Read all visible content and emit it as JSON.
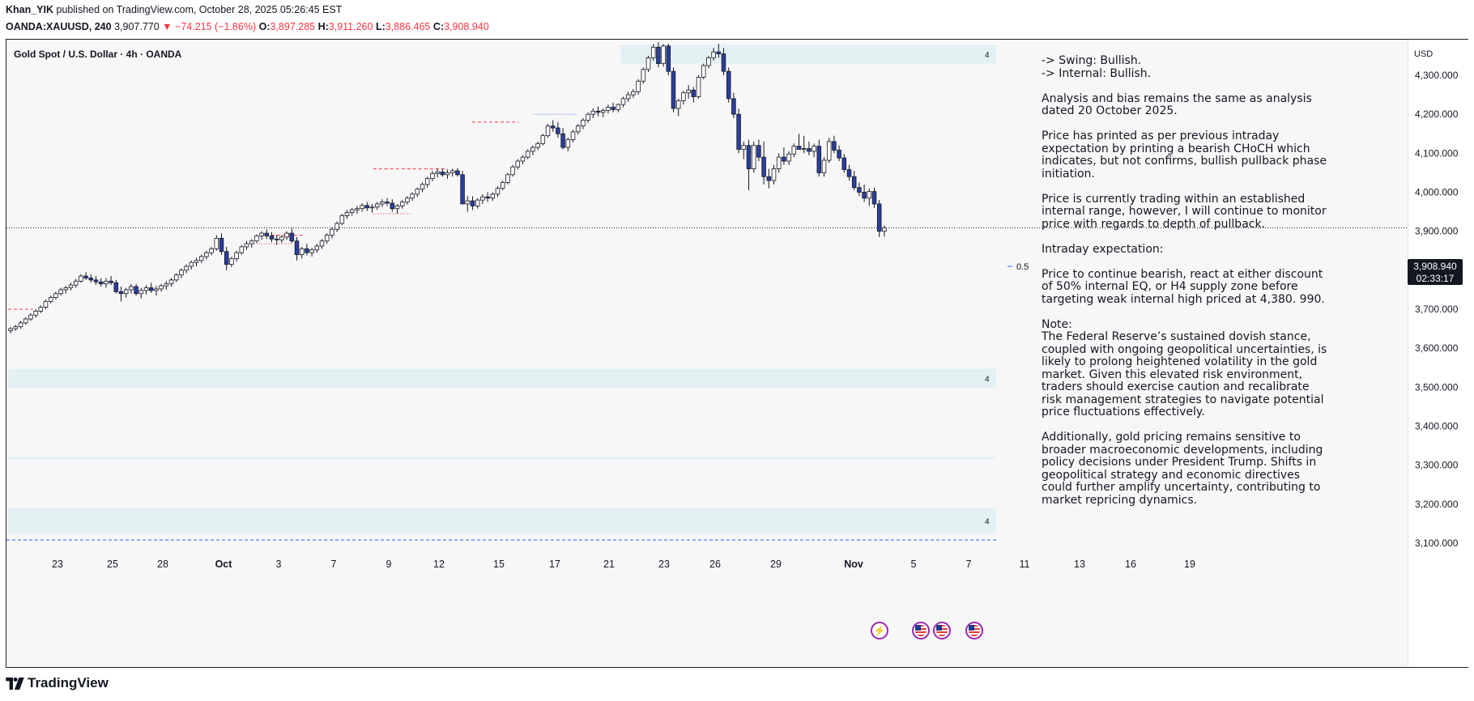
{
  "header": {
    "author": "Khan_YIK",
    "published": "published on TradingView.com, October 28, 2025 05:26:45 EST",
    "symbol": "OANDA:XAUUSD, 240",
    "last": "3,907.770",
    "change_arrow": "▼",
    "change": "−74.215 (−1.86%)",
    "open_label": "O:",
    "open": "3,897.285",
    "high_label": "H:",
    "high": "3,911.260",
    "low_label": "L:",
    "low": "3,886.465",
    "close_label": "C:",
    "close": "3,908.940"
  },
  "chart_title": "Gold Spot / U.S. Dollar · 4h · OANDA",
  "currency": "USD",
  "current_price": {
    "value": "3,908.940",
    "countdown": "02:33:17"
  },
  "notes": {
    "text": "-> Swing:  Bullish.\n-> Internal:  Bullish.\n\nAnalysis and bias remains the same as analysis dated 20 October 2025.\n\nPrice has printed as per previous intraday expectation by printing a bearish CHoCH which indicates, but not confirms, bullish pullback phase initiation.\n\nPrice is currently trading within an established internal range, however, I will continue to monitor price with regards to depth of pullback.\n\nIntraday expectation:\n\nPrice to continue bearish, react at either discount of 50% internal EQ, or H4 supply zone before targeting weak internal high priced at 4,380. 990.\n\nNote:\nThe Federal Reserve’s sustained dovish stance, coupled with ongoing geopolitical uncertainties, is likely to prolong heightened volatility in the gold market. Given this elevated risk environment, traders should exercise caution and recalibrate risk management strategies to navigate potential price fluctuations effectively.\n\nAdditionally, gold pricing remains sensitive to broader macroeconomic developments, including policy decisions under President Trump. Shifts in geopolitical strategy and economic directives could further amplify uncertainty, contributing to market repricing dynamics."
  },
  "fib_label": "0.5",
  "box_label": "4",
  "footer": {
    "brand": "TradingView"
  },
  "colors": {
    "bull": "#ffffff",
    "bear": "#2a3f9d",
    "wick": "#131722",
    "zone": "#e3f1f3",
    "red_line": "#f23645",
    "blue_line": "#2962ff"
  },
  "icons": [
    "flash-icon",
    "us-flag-icon",
    "us-flag-icon",
    "us-flag-icon",
    "tradingview-logo-icon"
  ],
  "chart_data": {
    "type": "candlestick",
    "title": "Gold Spot / U.S. Dollar · 4h · OANDA",
    "y_range": [
      3080,
      4430
    ],
    "y_ticks": [
      3100,
      3200,
      3300,
      3400,
      3500,
      3600,
      3700,
      3800,
      3900,
      4000,
      4100,
      4200,
      4300
    ],
    "y_tick_labels": [
      "3,100.000",
      "3,200.000",
      "3,300.000",
      "3,400.000",
      "3,500.000",
      "3,600.000",
      "3,700.000",
      "3,800.000",
      "3,900.000",
      "4,000.000",
      "4,100.000",
      "4,200.000",
      "4,300.000"
    ],
    "x_ticks": [
      "23",
      "25",
      "28",
      "Oct",
      "3",
      "7",
      "9",
      "12",
      "15",
      "17",
      "21",
      "23",
      "26",
      "29",
      "Nov",
      "5",
      "7",
      "11",
      "13",
      "16",
      "19"
    ],
    "x_tick_index": [
      12,
      28,
      48,
      68,
      87,
      108,
      128,
      146,
      168,
      188,
      208,
      228,
      248,
      268,
      288,
      310,
      330,
      350,
      370,
      390,
      410
    ],
    "num_bars": 274,
    "candles": [
      [
        3645,
        3655,
        3638,
        3650
      ],
      [
        3650,
        3660,
        3645,
        3655
      ],
      [
        3655,
        3670,
        3650,
        3665
      ],
      [
        3665,
        3680,
        3660,
        3675
      ],
      [
        3675,
        3690,
        3670,
        3685
      ],
      [
        3685,
        3700,
        3678,
        3695
      ],
      [
        3695,
        3710,
        3690,
        3705
      ],
      [
        3705,
        3725,
        3700,
        3720
      ],
      [
        3720,
        3735,
        3715,
        3730
      ],
      [
        3730,
        3745,
        3725,
        3740
      ],
      [
        3740,
        3755,
        3735,
        3750
      ],
      [
        3750,
        3760,
        3740,
        3755
      ],
      [
        3755,
        3768,
        3748,
        3762
      ],
      [
        3762,
        3778,
        3755,
        3772
      ],
      [
        3772,
        3790,
        3768,
        3785
      ],
      [
        3785,
        3795,
        3775,
        3780
      ],
      [
        3780,
        3790,
        3768,
        3775
      ],
      [
        3775,
        3785,
        3762,
        3770
      ],
      [
        3770,
        3780,
        3758,
        3765
      ],
      [
        3765,
        3780,
        3755,
        3772
      ],
      [
        3772,
        3785,
        3762,
        3768
      ],
      [
        3768,
        3775,
        3740,
        3745
      ],
      [
        3745,
        3758,
        3720,
        3740
      ],
      [
        3740,
        3755,
        3730,
        3750
      ],
      [
        3750,
        3765,
        3740,
        3758
      ],
      [
        3758,
        3765,
        3735,
        3740
      ],
      [
        3740,
        3755,
        3728,
        3748
      ],
      [
        3748,
        3762,
        3738,
        3755
      ],
      [
        3755,
        3768,
        3742,
        3748
      ],
      [
        3748,
        3760,
        3735,
        3752
      ],
      [
        3752,
        3765,
        3745,
        3760
      ],
      [
        3760,
        3772,
        3750,
        3765
      ],
      [
        3765,
        3780,
        3758,
        3775
      ],
      [
        3775,
        3792,
        3770,
        3788
      ],
      [
        3788,
        3805,
        3780,
        3800
      ],
      [
        3800,
        3815,
        3792,
        3810
      ],
      [
        3810,
        3825,
        3802,
        3820
      ],
      [
        3820,
        3832,
        3810,
        3825
      ],
      [
        3825,
        3840,
        3818,
        3835
      ],
      [
        3835,
        3850,
        3828,
        3845
      ],
      [
        3845,
        3860,
        3838,
        3855
      ],
      [
        3855,
        3890,
        3850,
        3882
      ],
      [
        3882,
        3895,
        3840,
        3848
      ],
      [
        3848,
        3860,
        3800,
        3815
      ],
      [
        3815,
        3835,
        3808,
        3830
      ],
      [
        3830,
        3850,
        3822,
        3845
      ],
      [
        3845,
        3865,
        3840,
        3860
      ],
      [
        3860,
        3875,
        3852,
        3868
      ],
      [
        3868,
        3880,
        3858,
        3875
      ],
      [
        3875,
        3892,
        3870,
        3888
      ],
      [
        3888,
        3900,
        3878,
        3895
      ],
      [
        3895,
        3905,
        3880,
        3888
      ],
      [
        3888,
        3898,
        3872,
        3880
      ],
      [
        3880,
        3890,
        3865,
        3878
      ],
      [
        3878,
        3890,
        3870,
        3885
      ],
      [
        3885,
        3900,
        3878,
        3895
      ],
      [
        3895,
        3908,
        3870,
        3875
      ],
      [
        3875,
        3885,
        3825,
        3840
      ],
      [
        3840,
        3860,
        3830,
        3855
      ],
      [
        3855,
        3868,
        3838,
        3845
      ],
      [
        3845,
        3858,
        3835,
        3852
      ],
      [
        3852,
        3868,
        3845,
        3862
      ],
      [
        3862,
        3880,
        3855,
        3875
      ],
      [
        3875,
        3895,
        3868,
        3890
      ],
      [
        3890,
        3910,
        3882,
        3905
      ],
      [
        3905,
        3925,
        3898,
        3920
      ],
      [
        3920,
        3945,
        3915,
        3940
      ],
      [
        3940,
        3955,
        3932,
        3948
      ],
      [
        3948,
        3960,
        3940,
        3955
      ],
      [
        3955,
        3965,
        3945,
        3958
      ],
      [
        3958,
        3972,
        3950,
        3966
      ],
      [
        3966,
        3975,
        3952,
        3960
      ],
      [
        3960,
        3970,
        3948,
        3962
      ],
      [
        3962,
        3975,
        3955,
        3970
      ],
      [
        3970,
        3982,
        3962,
        3975
      ],
      [
        3975,
        3985,
        3965,
        3972
      ],
      [
        3972,
        3982,
        3950,
        3958
      ],
      [
        3958,
        3970,
        3945,
        3965
      ],
      [
        3965,
        3980,
        3958,
        3975
      ],
      [
        3975,
        3990,
        3968,
        3985
      ],
      [
        3985,
        4000,
        3978,
        3995
      ],
      [
        3995,
        4012,
        3988,
        4008
      ],
      [
        4008,
        4025,
        4000,
        4020
      ],
      [
        4020,
        4040,
        4012,
        4035
      ],
      [
        4035,
        4055,
        4028,
        4048
      ],
      [
        4048,
        4060,
        4038,
        4052
      ],
      [
        4052,
        4060,
        4040,
        4045
      ],
      [
        4045,
        4058,
        4035,
        4050
      ],
      [
        4050,
        4060,
        4040,
        4055
      ],
      [
        4055,
        4062,
        4040,
        4045
      ],
      [
        4045,
        4055,
        3980,
        3970
      ],
      [
        3970,
        3990,
        3950,
        3978
      ],
      [
        3978,
        3990,
        3955,
        3965
      ],
      [
        3965,
        3985,
        3958,
        3980
      ],
      [
        3980,
        3995,
        3970,
        3988
      ],
      [
        3988,
        4000,
        3975,
        3985
      ],
      [
        3985,
        4000,
        3978,
        3995
      ],
      [
        3995,
        4015,
        3988,
        4010
      ],
      [
        4010,
        4030,
        4005,
        4025
      ],
      [
        4025,
        4050,
        4020,
        4045
      ],
      [
        4045,
        4070,
        4040,
        4065
      ],
      [
        4065,
        4085,
        4058,
        4080
      ],
      [
        4080,
        4095,
        4072,
        4090
      ],
      [
        4090,
        4110,
        4085,
        4105
      ],
      [
        4105,
        4120,
        4095,
        4115
      ],
      [
        4115,
        4130,
        4108,
        4125
      ],
      [
        4125,
        4150,
        4120,
        4145
      ],
      [
        4145,
        4175,
        4140,
        4170
      ],
      [
        4170,
        4185,
        4155,
        4165
      ],
      [
        4165,
        4180,
        4140,
        4150
      ],
      [
        4150,
        4165,
        4110,
        4115
      ],
      [
        4115,
        4140,
        4105,
        4135
      ],
      [
        4135,
        4160,
        4128,
        4155
      ],
      [
        4155,
        4175,
        4148,
        4170
      ],
      [
        4170,
        4190,
        4162,
        4185
      ],
      [
        4185,
        4205,
        4178,
        4200
      ],
      [
        4200,
        4215,
        4190,
        4208
      ],
      [
        4208,
        4220,
        4195,
        4205
      ],
      [
        4205,
        4215,
        4192,
        4210
      ],
      [
        4210,
        4225,
        4202,
        4218
      ],
      [
        4218,
        4230,
        4205,
        4212
      ],
      [
        4212,
        4228,
        4205,
        4225
      ],
      [
        4225,
        4245,
        4218,
        4240
      ],
      [
        4240,
        4258,
        4232,
        4250
      ],
      [
        4250,
        4265,
        4242,
        4258
      ],
      [
        4258,
        4290,
        4250,
        4285
      ],
      [
        4285,
        4320,
        4278,
        4315
      ],
      [
        4315,
        4350,
        4308,
        4345
      ],
      [
        4345,
        4380,
        4338,
        4372
      ],
      [
        4372,
        4385,
        4320,
        4330
      ],
      [
        4330,
        4380,
        4322,
        4375
      ],
      [
        4375,
        4381,
        4300,
        4310
      ],
      [
        4310,
        4320,
        4205,
        4215
      ],
      [
        4215,
        4240,
        4195,
        4235
      ],
      [
        4235,
        4260,
        4225,
        4255
      ],
      [
        4255,
        4275,
        4240,
        4262
      ],
      [
        4262,
        4270,
        4230,
        4245
      ],
      [
        4245,
        4300,
        4240,
        4295
      ],
      [
        4295,
        4330,
        4290,
        4325
      ],
      [
        4325,
        4350,
        4318,
        4345
      ],
      [
        4345,
        4370,
        4338,
        4360
      ],
      [
        4360,
        4381,
        4345,
        4355
      ],
      [
        4355,
        4370,
        4300,
        4310
      ],
      [
        4310,
        4320,
        4230,
        4240
      ],
      [
        4240,
        4255,
        4190,
        4200
      ],
      [
        4200,
        4215,
        4100,
        4110
      ],
      [
        4110,
        4130,
        4085,
        4120
      ],
      [
        4120,
        4135,
        4005,
        4060
      ],
      [
        4060,
        4130,
        4050,
        4120
      ],
      [
        4120,
        4135,
        4080,
        4090
      ],
      [
        4090,
        4130,
        4020,
        4040
      ],
      [
        4040,
        4060,
        4010,
        4030
      ],
      [
        4030,
        4070,
        4020,
        4060
      ],
      [
        4060,
        4100,
        4050,
        4090
      ],
      [
        4090,
        4115,
        4070,
        4080
      ],
      [
        4080,
        4105,
        4070,
        4098
      ],
      [
        4098,
        4125,
        4090,
        4118
      ],
      [
        4118,
        4150,
        4110,
        4110
      ],
      [
        4110,
        4145,
        4100,
        4112
      ],
      [
        4112,
        4130,
        4095,
        4105
      ],
      [
        4105,
        4125,
        4090,
        4118
      ],
      [
        4118,
        4135,
        4040,
        4050
      ],
      [
        4050,
        4090,
        4040,
        4082
      ],
      [
        4082,
        4140,
        4075,
        4130
      ],
      [
        4130,
        4145,
        4100,
        4108
      ],
      [
        4108,
        4120,
        4080,
        4088
      ],
      [
        4088,
        4098,
        4050,
        4058
      ],
      [
        4058,
        4070,
        4030,
        4040
      ],
      [
        4040,
        4055,
        4005,
        4012
      ],
      [
        4012,
        4025,
        3990,
        4000
      ],
      [
        4000,
        4020,
        3975,
        3985
      ],
      [
        3985,
        4010,
        3965,
        4002
      ],
      [
        4002,
        4012,
        3960,
        3970
      ],
      [
        3970,
        3980,
        3885,
        3900
      ],
      [
        3900,
        3915,
        3886,
        3909
      ]
    ],
    "candles_start_index": 0,
    "zones": [
      {
        "label": "4",
        "from_index": 198,
        "top": 4430,
        "bottom": 4330
      },
      {
        "label": "4",
        "from_index": 0,
        "top": 3547,
        "bottom": 3498
      },
      {
        "label": "4",
        "from_index": 0,
        "top": 3190,
        "bottom": 3125
      }
    ],
    "fib_level": {
      "label": "0.5",
      "price": 3810
    },
    "current_price": 3908.94
  }
}
